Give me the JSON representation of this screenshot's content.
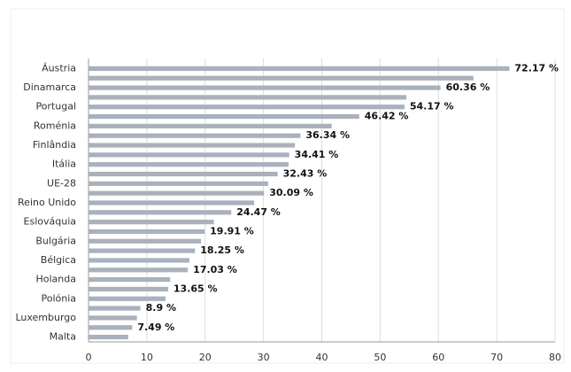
{
  "chart_data": {
    "type": "hbar",
    "categories": [
      "Áustria",
      null,
      "Dinamarca",
      null,
      "Portugal",
      null,
      "Roménia",
      null,
      "Finlândia",
      null,
      "Itália",
      null,
      "UE-28",
      null,
      "Reino Unido",
      null,
      "Eslováquia",
      null,
      "Bulgária",
      null,
      "Bélgica",
      null,
      "Holanda",
      null,
      "Polónia",
      null,
      "Luxemburgo",
      null,
      "Malta"
    ],
    "values": [
      72.17,
      66.0,
      60.36,
      54.5,
      54.17,
      46.42,
      41.7,
      36.34,
      35.4,
      34.41,
      34.3,
      32.43,
      30.8,
      30.09,
      28.4,
      24.47,
      21.5,
      19.91,
      19.3,
      18.25,
      17.3,
      17.03,
      14.0,
      13.65,
      13.2,
      8.9,
      8.3,
      7.49,
      6.8
    ],
    "value_labels": [
      "72.17 %",
      null,
      "60.36 %",
      null,
      "54.17 %",
      "46.42 %",
      null,
      "36.34 %",
      null,
      "34.41 %",
      null,
      "32.43 %",
      null,
      "30.09 %",
      null,
      "24.47 %",
      null,
      "19.91 %",
      null,
      "18.25 %",
      null,
      "17.03 %",
      null,
      "13.65 %",
      null,
      "8.9 %",
      null,
      "7.49 %",
      null
    ],
    "color": "#a9b1bc",
    "xlim": [
      0,
      80
    ],
    "xticks": [
      0,
      10,
      20,
      30,
      40,
      50,
      60,
      70,
      80
    ],
    "grid": true
  }
}
